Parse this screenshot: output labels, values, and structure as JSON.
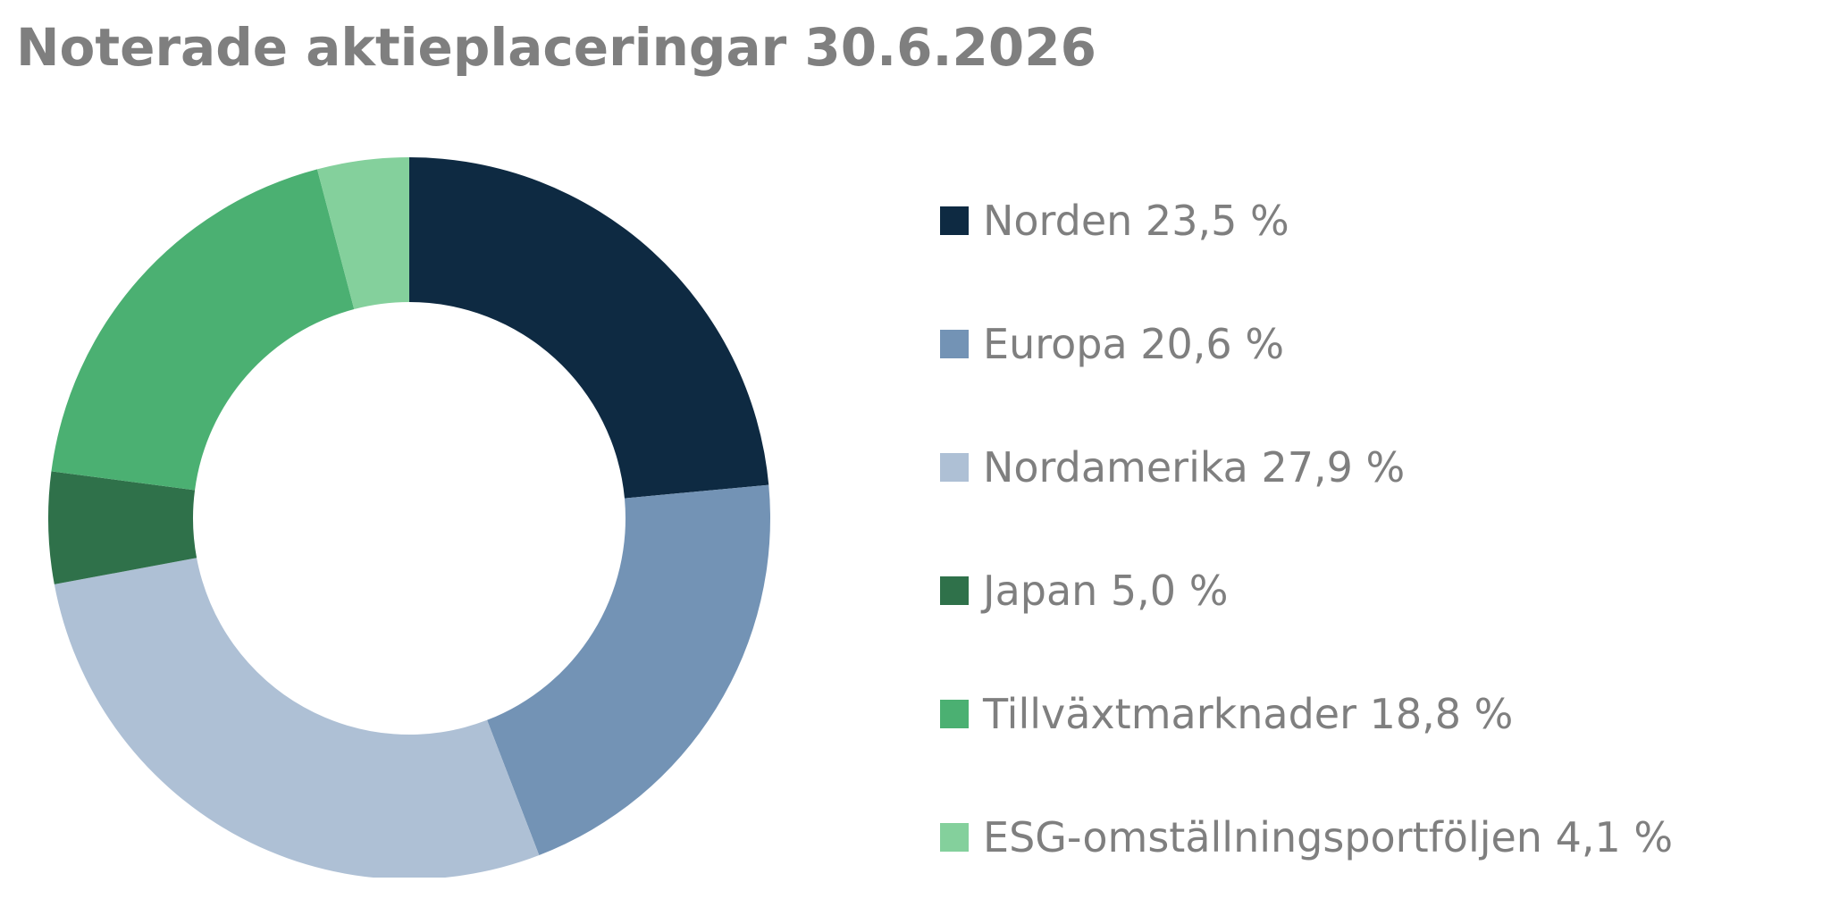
{
  "chart_data": {
    "type": "pie",
    "title": "Noterade aktieplaceringar 30.6.2026",
    "categories": [
      "Norden",
      "Europa",
      "Nordamerika",
      "Japan",
      "Tillväxtmarknader",
      "ESG-omställningsportföljen"
    ],
    "values": [
      23.5,
      20.6,
      27.9,
      5.0,
      18.8,
      4.1
    ],
    "legend_labels": [
      "Norden 23,5 %",
      "Europa 20,6 %",
      "Nordamerika 27,9 %",
      "Japan 5,0 %",
      "Tillväxtmarknader 18,8 %",
      "ESG-omställningsportföljen 4,1 %"
    ],
    "colors": [
      "#0e2a42",
      "#7393b5",
      "#aec0d5",
      "#2f714a",
      "#4bb072",
      "#84d09c"
    ],
    "donut": true,
    "legend_position": "right",
    "start_angle": "top, clockwise"
  }
}
